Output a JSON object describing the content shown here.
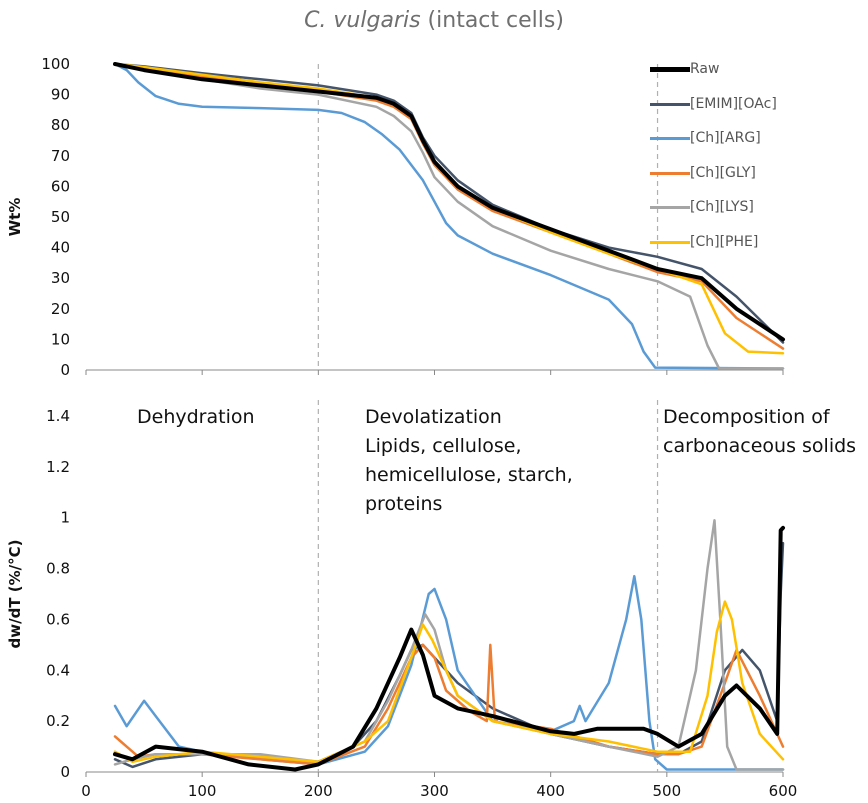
{
  "title_italic": "C. vulgaris",
  "title_rest": " (intact cells)",
  "colors": {
    "Raw": "#000000",
    "[EMIM][OAc]": "#44546a",
    "[Ch][ARG]": "#5b9bd5",
    "[Ch][GLY]": "#ed7d31",
    "[Ch][LYS]": "#a5a5a5",
    "[Ch][PHE]": "#ffc000",
    "divider": "#b0b0b0"
  },
  "legend": [
    "Raw",
    "[EMIM][OAc]",
    "[Ch][ARG]",
    "[Ch][GLY]",
    "[Ch][LYS]",
    "[Ch][PHE]"
  ],
  "annotations": {
    "dehydration": "Dehydration",
    "devol_1": "Devolatization",
    "devol_2": "Lipids, cellulose,",
    "devol_3": "hemicellulose, starch,",
    "devol_4": "proteins",
    "decomp_1": "Decomposition of",
    "decomp_2": "carbonaceous solids"
  },
  "chart_data": [
    {
      "type": "line",
      "ylabel": "Wt%",
      "xlim": [
        0,
        600
      ],
      "ylim": [
        0,
        100
      ],
      "yticks": [
        0,
        10,
        20,
        30,
        40,
        50,
        60,
        70,
        80,
        90,
        100
      ],
      "dividers": [
        200,
        492
      ],
      "series": [
        {
          "name": "Raw",
          "x": [
            25,
            50,
            100,
            150,
            200,
            250,
            265,
            280,
            290,
            300,
            320,
            350,
            400,
            450,
            492,
            530,
            560,
            600
          ],
          "y": [
            100,
            98,
            95,
            93,
            91,
            89,
            87,
            83,
            75,
            68,
            60,
            53,
            46,
            39,
            33,
            30,
            20,
            10
          ]
        },
        {
          "name": "[EMIM][OAc]",
          "x": [
            25,
            50,
            100,
            150,
            200,
            250,
            265,
            280,
            290,
            300,
            320,
            350,
            400,
            450,
            492,
            530,
            560,
            600
          ],
          "y": [
            100,
            99.2,
            97,
            95,
            93,
            90,
            88,
            84,
            76,
            70,
            62,
            54,
            46,
            40,
            37,
            33,
            24,
            9
          ]
        },
        {
          "name": "[Ch][ARG]",
          "x": [
            25,
            35,
            45,
            60,
            80,
            100,
            150,
            200,
            220,
            240,
            255,
            270,
            290,
            300,
            310,
            320,
            350,
            400,
            450,
            470,
            480,
            490,
            600
          ],
          "y": [
            100,
            98,
            94,
            89.5,
            87,
            86,
            85.6,
            85,
            84,
            81,
            77,
            72,
            62,
            55,
            48,
            44,
            38,
            31,
            23,
            15,
            6,
            0.8,
            0.5
          ]
        },
        {
          "name": "[Ch][GLY]",
          "x": [
            25,
            50,
            100,
            150,
            200,
            250,
            265,
            280,
            290,
            300,
            320,
            350,
            400,
            450,
            492,
            530,
            560,
            600
          ],
          "y": [
            100,
            98.5,
            96,
            93,
            91,
            88,
            86,
            82,
            74,
            67,
            59,
            52,
            45,
            38,
            32,
            29,
            17,
            7
          ]
        },
        {
          "name": "[Ch][LYS]",
          "x": [
            25,
            50,
            100,
            150,
            200,
            250,
            265,
            280,
            290,
            300,
            320,
            350,
            400,
            450,
            492,
            520,
            535,
            545,
            600
          ],
          "y": [
            100,
            98.6,
            95,
            92,
            90,
            86,
            83,
            78,
            71,
            63,
            55,
            47,
            39,
            33,
            29,
            24,
            8,
            0.5,
            0.5
          ]
        },
        {
          "name": "[Ch][PHE]",
          "x": [
            25,
            50,
            100,
            150,
            200,
            250,
            265,
            280,
            290,
            300,
            320,
            350,
            400,
            450,
            492,
            530,
            550,
            570,
            600
          ],
          "y": [
            100,
            99,
            96.5,
            94,
            92,
            89,
            87,
            83,
            75,
            68,
            60,
            53,
            45,
            38,
            33,
            28,
            12,
            6,
            5.5
          ]
        }
      ]
    },
    {
      "type": "line",
      "ylabel": "dw/dT (%/°C)",
      "xlim": [
        0,
        600
      ],
      "ylim": [
        0,
        1.4
      ],
      "xticks": [
        0,
        100,
        200,
        300,
        400,
        500,
        600
      ],
      "yticks": [
        0,
        0.2,
        0.4,
        0.6,
        0.8,
        1,
        1.2,
        1.4
      ],
      "series": [
        {
          "name": "Raw",
          "x": [
            25,
            40,
            60,
            100,
            140,
            180,
            200,
            230,
            250,
            270,
            280,
            290,
            300,
            320,
            350,
            400,
            420,
            440,
            460,
            480,
            492,
            510,
            530,
            550,
            560,
            580,
            595,
            598,
            600
          ],
          "y": [
            0.07,
            0.05,
            0.1,
            0.08,
            0.03,
            0.01,
            0.03,
            0.1,
            0.25,
            0.45,
            0.56,
            0.46,
            0.3,
            0.25,
            0.22,
            0.16,
            0.15,
            0.17,
            0.17,
            0.17,
            0.15,
            0.1,
            0.15,
            0.3,
            0.34,
            0.25,
            0.15,
            0.95,
            0.96
          ]
        },
        {
          "name": "[EMIM][OAc]",
          "x": [
            25,
            40,
            60,
            100,
            150,
            200,
            230,
            250,
            270,
            280,
            290,
            300,
            320,
            350,
            400,
            450,
            492,
            510,
            530,
            550,
            565,
            580,
            595,
            598,
            600
          ],
          "y": [
            0.05,
            0.02,
            0.05,
            0.07,
            0.06,
            0.04,
            0.1,
            0.2,
            0.38,
            0.48,
            0.5,
            0.45,
            0.35,
            0.25,
            0.15,
            0.1,
            0.07,
            0.07,
            0.12,
            0.4,
            0.48,
            0.4,
            0.2,
            0.7,
            0.9
          ]
        },
        {
          "name": "[Ch][ARG]",
          "x": [
            25,
            35,
            50,
            60,
            80,
            100,
            150,
            200,
            240,
            260,
            280,
            295,
            300,
            310,
            320,
            350,
            400,
            420,
            425,
            430,
            450,
            465,
            472,
            478,
            485,
            490,
            500,
            600
          ],
          "y": [
            0.26,
            0.18,
            0.28,
            0.22,
            0.1,
            0.08,
            0.05,
            0.03,
            0.08,
            0.18,
            0.42,
            0.7,
            0.72,
            0.6,
            0.4,
            0.2,
            0.16,
            0.2,
            0.26,
            0.2,
            0.35,
            0.6,
            0.77,
            0.6,
            0.2,
            0.05,
            0.01,
            0.01
          ]
        },
        {
          "name": "[Ch][GLY]",
          "x": [
            25,
            30,
            45,
            60,
            100,
            150,
            200,
            240,
            260,
            280,
            290,
            300,
            310,
            330,
            345,
            348,
            352,
            355,
            370,
            400,
            450,
            492,
            510,
            530,
            550,
            560,
            580,
            600
          ],
          "y": [
            0.14,
            0.12,
            0.06,
            0.07,
            0.07,
            0.05,
            0.03,
            0.1,
            0.25,
            0.45,
            0.5,
            0.45,
            0.32,
            0.24,
            0.2,
            0.5,
            0.2,
            0.21,
            0.19,
            0.17,
            0.1,
            0.07,
            0.07,
            0.1,
            0.35,
            0.48,
            0.3,
            0.1
          ]
        },
        {
          "name": "[Ch][LYS]",
          "x": [
            25,
            40,
            60,
            100,
            150,
            200,
            240,
            260,
            280,
            292,
            300,
            310,
            320,
            350,
            400,
            450,
            492,
            510,
            525,
            535,
            541,
            546,
            552,
            560,
            600
          ],
          "y": [
            0.03,
            0.05,
            0.07,
            0.07,
            0.07,
            0.04,
            0.12,
            0.28,
            0.48,
            0.62,
            0.56,
            0.4,
            0.3,
            0.2,
            0.15,
            0.1,
            0.06,
            0.1,
            0.4,
            0.8,
            0.99,
            0.6,
            0.1,
            0.01,
            0.01
          ]
        },
        {
          "name": "[Ch][PHE]",
          "x": [
            25,
            40,
            60,
            100,
            150,
            200,
            240,
            260,
            280,
            290,
            298,
            310,
            320,
            350,
            400,
            450,
            492,
            520,
            535,
            543,
            550,
            556,
            565,
            580,
            600
          ],
          "y": [
            0.08,
            0.04,
            0.06,
            0.08,
            0.06,
            0.04,
            0.12,
            0.2,
            0.45,
            0.58,
            0.52,
            0.4,
            0.3,
            0.2,
            0.15,
            0.12,
            0.08,
            0.08,
            0.3,
            0.55,
            0.67,
            0.6,
            0.35,
            0.15,
            0.05
          ]
        }
      ]
    }
  ]
}
